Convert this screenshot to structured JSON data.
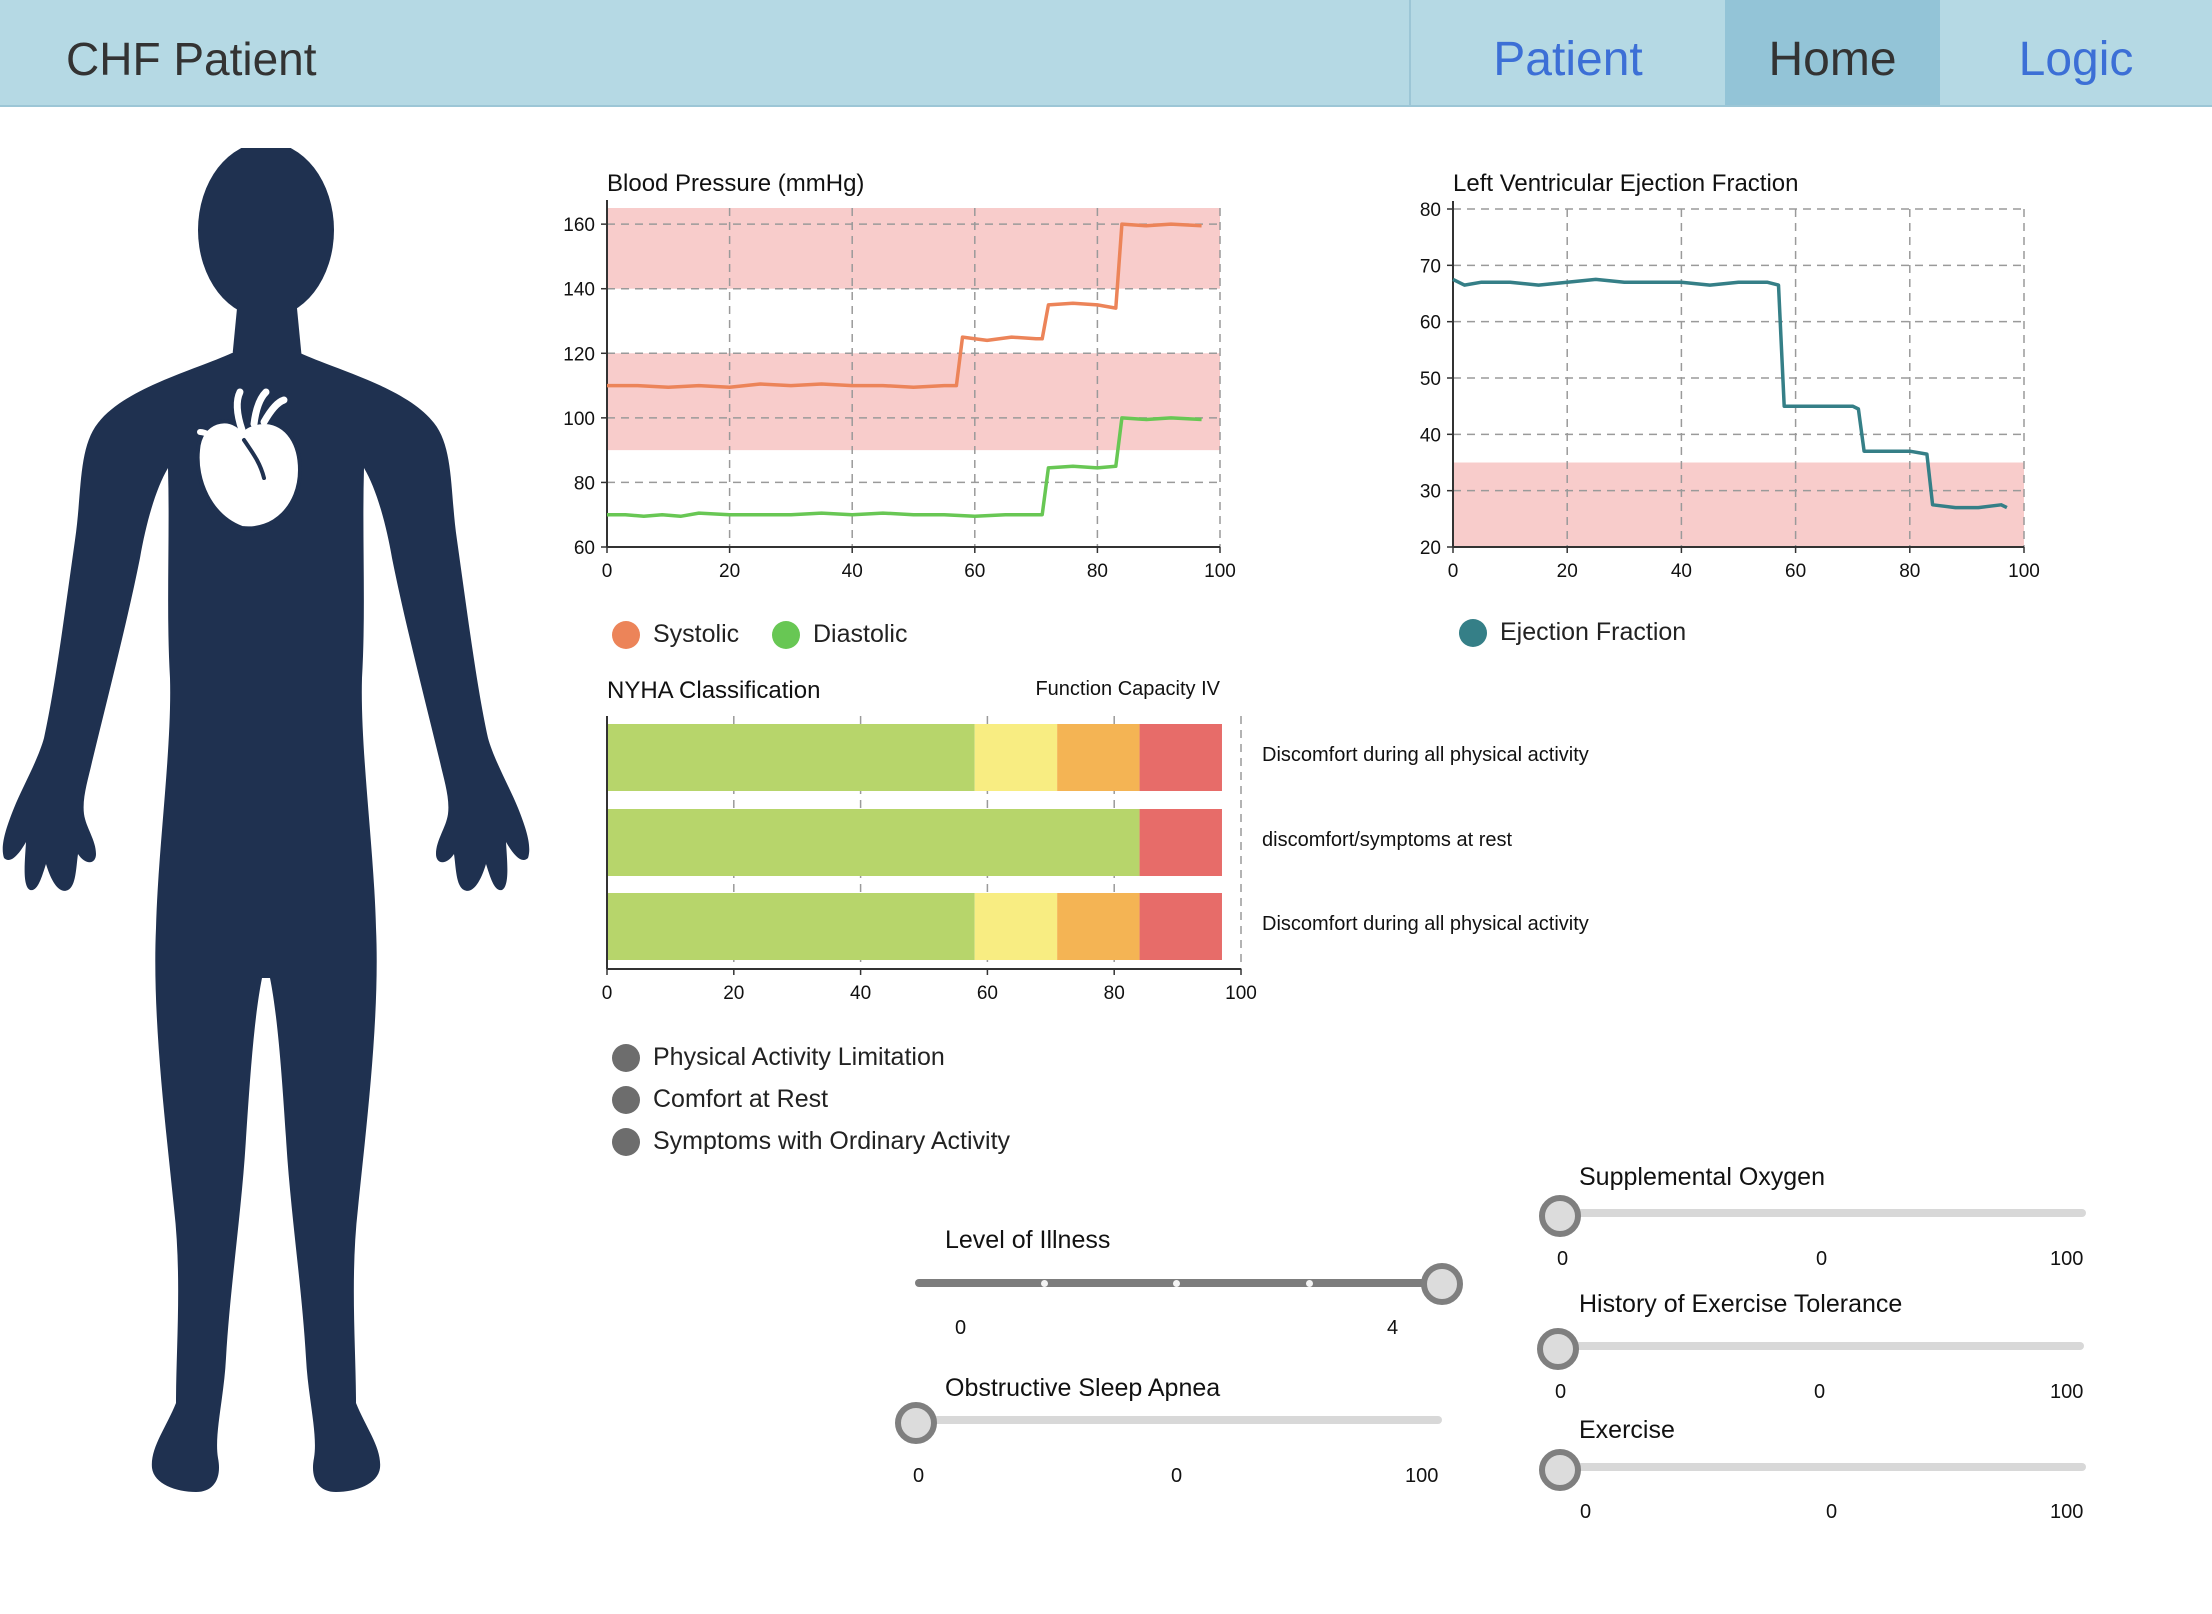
{
  "header": {
    "title": "CHF Patient",
    "nav": [
      {
        "label": "Patient",
        "active": false
      },
      {
        "label": "Home",
        "active": true
      },
      {
        "label": "Logic",
        "active": false
      }
    ],
    "colors": {
      "bar": "#b5d9e4",
      "active_tab": "#93c4d7",
      "link": "#3c6fd6"
    }
  },
  "figure": {
    "body_color": "#1f3150",
    "heart_icon": "heart-icon"
  },
  "chart_data": [
    {
      "id": "blood-pressure",
      "type": "line",
      "title": "Blood Pressure (mmHg)",
      "xlim": [
        0,
        100
      ],
      "ylim": [
        60,
        165
      ],
      "x_ticks": [
        0,
        20,
        40,
        60,
        80,
        100
      ],
      "y_ticks": [
        60,
        80,
        100,
        120,
        140,
        160
      ],
      "grid": true,
      "bands": [
        {
          "from": 140,
          "to": 166,
          "color": "#f8cccb"
        },
        {
          "from": 90,
          "to": 120,
          "color": "#f8cccb"
        }
      ],
      "series": [
        {
          "name": "Systolic",
          "color": "#ec8459",
          "points": [
            [
              0,
              110
            ],
            [
              5,
              110
            ],
            [
              10,
              109.5
            ],
            [
              15,
              110
            ],
            [
              20,
              109.5
            ],
            [
              25,
              110.5
            ],
            [
              30,
              110
            ],
            [
              35,
              110.5
            ],
            [
              40,
              110
            ],
            [
              45,
              110
            ],
            [
              50,
              109.5
            ],
            [
              55,
              110
            ],
            [
              57,
              110
            ],
            [
              58,
              125
            ],
            [
              62,
              124
            ],
            [
              66,
              125
            ],
            [
              70,
              124.5
            ],
            [
              71,
              124.5
            ],
            [
              72,
              135
            ],
            [
              76,
              135.5
            ],
            [
              80,
              135
            ],
            [
              83,
              134
            ],
            [
              84,
              160
            ],
            [
              88,
              159.5
            ],
            [
              92,
              160
            ],
            [
              97,
              159.5
            ]
          ]
        },
        {
          "name": "Diastolic",
          "color": "#68c754",
          "points": [
            [
              0,
              70
            ],
            [
              3,
              70
            ],
            [
              6,
              69.5
            ],
            [
              9,
              70
            ],
            [
              12,
              69.5
            ],
            [
              15,
              70.5
            ],
            [
              20,
              70
            ],
            [
              25,
              70
            ],
            [
              30,
              70
            ],
            [
              35,
              70.5
            ],
            [
              40,
              70
            ],
            [
              45,
              70.5
            ],
            [
              50,
              70
            ],
            [
              55,
              70
            ],
            [
              60,
              69.5
            ],
            [
              65,
              70
            ],
            [
              70,
              70
            ],
            [
              71,
              70
            ],
            [
              72,
              84.5
            ],
            [
              76,
              85
            ],
            [
              80,
              84.5
            ],
            [
              83,
              85
            ],
            [
              84,
              100
            ],
            [
              88,
              99.5
            ],
            [
              92,
              100
            ],
            [
              97,
              99.5
            ]
          ]
        }
      ],
      "legend": [
        "Systolic",
        "Diastolic"
      ]
    },
    {
      "id": "ejection-fraction",
      "type": "line",
      "title": "Left Ventricular Ejection Fraction",
      "xlim": [
        0,
        100
      ],
      "ylim": [
        20,
        80
      ],
      "x_ticks": [
        0,
        20,
        40,
        60,
        80,
        100
      ],
      "y_ticks": [
        20,
        30,
        40,
        50,
        60,
        70,
        80
      ],
      "grid": true,
      "bands": [
        {
          "from": 20,
          "to": 35,
          "color": "#f8cccb"
        }
      ],
      "series": [
        {
          "name": "Ejection Fraction",
          "color": "#357f87",
          "points": [
            [
              0,
              67.5
            ],
            [
              2,
              66.5
            ],
            [
              5,
              67
            ],
            [
              10,
              67
            ],
            [
              15,
              66.5
            ],
            [
              20,
              67
            ],
            [
              25,
              67.5
            ],
            [
              30,
              67
            ],
            [
              35,
              67
            ],
            [
              40,
              67
            ],
            [
              45,
              66.5
            ],
            [
              50,
              67
            ],
            [
              55,
              67
            ],
            [
              57,
              66.5
            ],
            [
              58,
              45
            ],
            [
              62,
              45
            ],
            [
              66,
              45
            ],
            [
              70,
              45
            ],
            [
              71,
              44.5
            ],
            [
              72,
              37
            ],
            [
              76,
              37
            ],
            [
              80,
              37
            ],
            [
              83,
              36.5
            ],
            [
              84,
              27.5
            ],
            [
              88,
              27
            ],
            [
              92,
              27
            ],
            [
              96,
              27.5
            ],
            [
              97,
              27
            ]
          ]
        }
      ],
      "legend": [
        "Ejection Fraction"
      ]
    },
    {
      "id": "nyha",
      "type": "bar",
      "stacked": true,
      "orientation": "horizontal",
      "title": "NYHA Classification",
      "subtitle": "Function Capacity IV",
      "xlim": [
        0,
        100
      ],
      "x_ticks": [
        0,
        20,
        40,
        60,
        80,
        100
      ],
      "categories": [
        "Discomfort during all physical activity",
        "discomfort/symptoms at rest",
        "Discomfort during all physical activity"
      ],
      "series": [
        {
          "color": "#b7d56b",
          "values": [
            58,
            84,
            58
          ]
        },
        {
          "color": "#f8ed82",
          "values": [
            13,
            0,
            13
          ]
        },
        {
          "color": "#f4b454",
          "values": [
            13,
            0,
            13
          ]
        },
        {
          "color": "#e76c69",
          "values": [
            13,
            13,
            13
          ]
        }
      ],
      "legend": [
        "Physical Activity Limitation",
        "Comfort at Rest",
        "Symptoms with Ordinary Activity"
      ],
      "legend_color": "#6d6d6d"
    }
  ],
  "sliders": {
    "level_of_illness": {
      "title": "Level of Illness",
      "min_label": "0",
      "max_label": "4",
      "value": 4,
      "max": 4
    },
    "obstructive_sleep_apnea": {
      "title": "Obstructive Sleep Apnea",
      "min_label": "0",
      "value_label": "0",
      "max_label": "100",
      "value": 0
    },
    "supplemental_oxygen": {
      "title": "Supplemental Oxygen",
      "min_label": "0",
      "value_label": "0",
      "max_label": "100",
      "value": 0
    },
    "history_of_exercise_tolerance": {
      "title": "History of Exercise Tolerance",
      "min_label": "0",
      "value_label": "0",
      "max_label": "100",
      "value": 0
    },
    "exercise": {
      "title": "Exercise",
      "min_label": "0",
      "value_label": "0",
      "max_label": "100",
      "value": 0
    }
  }
}
